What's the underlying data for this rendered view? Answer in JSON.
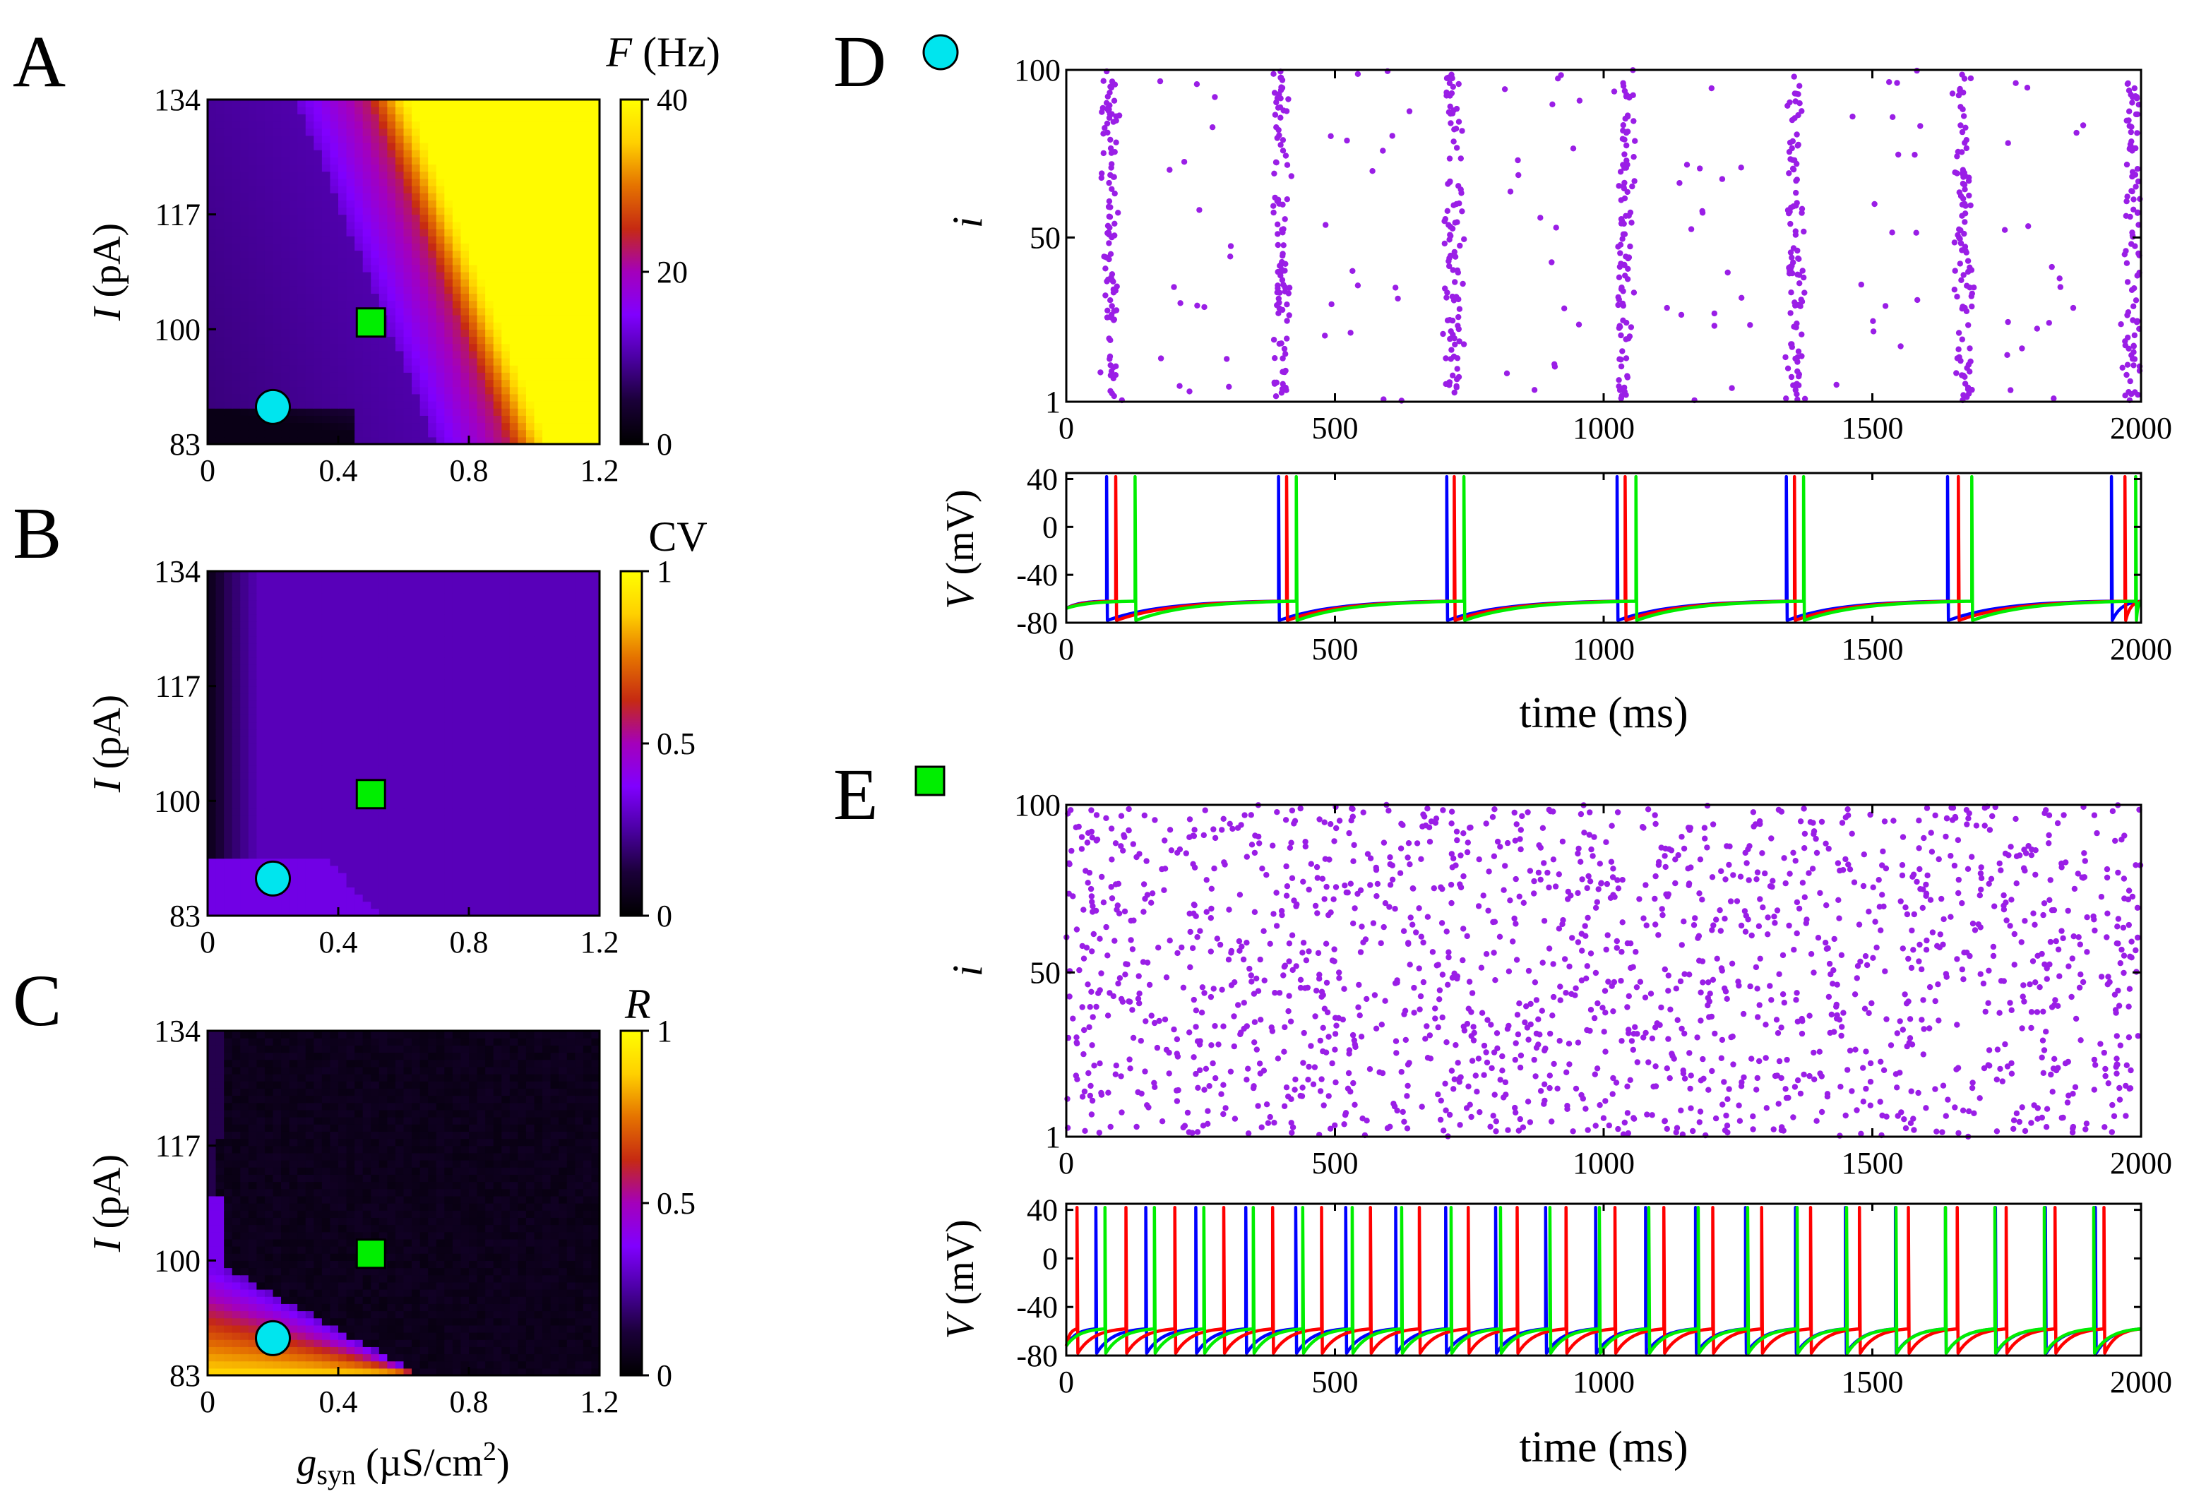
{
  "chart_data": [
    {
      "panel": "A",
      "type": "heatmap",
      "label": "A",
      "xlabel_main": "g",
      "xlabel_sub": "syn",
      "xlabel_unit": " (µS/cm",
      "xlabel_sup": "2",
      "xlabel_close": ")",
      "ylabel_var": "I",
      "ylabel_unit": " (pA)",
      "xticks": [
        "0",
        "0.4",
        "0.8",
        "1.2"
      ],
      "xlim": [
        0,
        1.2
      ],
      "yticks": [
        "83",
        "100",
        "117",
        "134"
      ],
      "ylim": [
        83,
        134
      ],
      "colorbar_title_var": "F",
      "colorbar_title_unit": " (Hz)",
      "colorbar_ticks": [
        "0",
        "20",
        "40"
      ],
      "colorbar_range": [
        0,
        40
      ],
      "colormap": [
        "#000000",
        "#1a0038",
        "#4b00a3",
        "#8000ff",
        "#a400bb",
        "#c62a12",
        "#e57300",
        "#ffd000",
        "#ffff00"
      ],
      "markers": [
        {
          "name": "cyan-circle",
          "g": 0.2,
          "I": 88.5,
          "color": "#00e5ee"
        },
        {
          "name": "green-square",
          "g": 0.5,
          "I": 101,
          "color": "#00ee00"
        }
      ]
    },
    {
      "panel": "B",
      "type": "heatmap",
      "label": "B",
      "ylabel_var": "I",
      "ylabel_unit": " (pA)",
      "xticks": [
        "0",
        "0.4",
        "0.8",
        "1.2"
      ],
      "xlim": [
        0,
        1.2
      ],
      "yticks": [
        "83",
        "100",
        "117",
        "134"
      ],
      "ylim": [
        83,
        134
      ],
      "colorbar_title": "CV",
      "colorbar_ticks": [
        "0",
        "0.5",
        "1"
      ],
      "colorbar_range": [
        0,
        1
      ]
    },
    {
      "panel": "C",
      "type": "heatmap",
      "label": "C",
      "ylabel_var": "I",
      "ylabel_unit": " (pA)",
      "xticks": [
        "0",
        "0.4",
        "0.8",
        "1.2"
      ],
      "xlim": [
        0,
        1.2
      ],
      "yticks": [
        "83",
        "100",
        "117",
        "134"
      ],
      "ylim": [
        83,
        134
      ],
      "colorbar_title_var": "R",
      "colorbar_ticks": [
        "0",
        "0.5",
        "1"
      ],
      "colorbar_range": [
        0,
        1
      ]
    },
    {
      "panel": "D",
      "type": "scatter",
      "label": "D",
      "marker": "cyan-circle",
      "raster": {
        "ylabel": "i",
        "xlim": [
          0,
          2000
        ],
        "ylim": [
          1,
          100
        ],
        "xticks": [
          "0",
          "500",
          "1000",
          "1500",
          "2000"
        ],
        "yticks": [
          "1",
          "50",
          "100"
        ],
        "burst_times_ms": [
          80,
          400,
          720,
          1040,
          1355,
          1670,
          1985
        ],
        "burst_spread_ms": 28,
        "dot_color": "#9a1ee6"
      },
      "voltage": {
        "type": "line",
        "ylabel_var": "V",
        "ylabel_unit": " (mV)",
        "xlim": [
          0,
          2000
        ],
        "ylim": [
          -80,
          45
        ],
        "xticks": [
          "0",
          "500",
          "1000",
          "1500",
          "2000"
        ],
        "yticks": [
          "-80",
          "-40",
          "0",
          "40"
        ],
        "xlabel": "time (ms)",
        "series": [
          {
            "name": "blue",
            "color": "#0000ff",
            "spikes_ms": [
              75,
              395,
              708,
              1025,
              1340,
              1640,
              1945
            ]
          },
          {
            "name": "red",
            "color": "#ff0000",
            "spikes_ms": [
              92,
              410,
              722,
              1040,
              1355,
              1660,
              1970
            ]
          },
          {
            "name": "green",
            "color": "#00ee00",
            "spikes_ms": [
              128,
              428,
              740,
              1060,
              1372,
              1685,
              1990
            ]
          }
        ]
      }
    },
    {
      "panel": "E",
      "type": "scatter",
      "label": "E",
      "marker": "green-square",
      "raster": {
        "ylabel": "i",
        "xlim": [
          0,
          2000
        ],
        "ylim": [
          1,
          100
        ],
        "xticks": [
          "0",
          "500",
          "1000",
          "1500",
          "2000"
        ],
        "yticks": [
          "1",
          "50",
          "100"
        ],
        "n_spikes": 1700,
        "dot_color": "#9a1ee6"
      },
      "voltage": {
        "type": "line",
        "ylabel_var": "V",
        "ylabel_unit": " (mV)",
        "xlim": [
          0,
          2000
        ],
        "ylim": [
          -80,
          45
        ],
        "xticks": [
          "0",
          "500",
          "1000",
          "1500",
          "2000"
        ],
        "yticks": [
          "-80",
          "-40",
          "0",
          "40"
        ],
        "xlabel": "time (ms)",
        "series": [
          {
            "name": "blue",
            "color": "#0000ff",
            "period_ms": 93,
            "phase_ms": 55
          },
          {
            "name": "red",
            "color": "#ff0000",
            "period_ms": 91,
            "phase_ms": 20
          },
          {
            "name": "green",
            "color": "#00ee00",
            "period_ms": 92,
            "phase_ms": 72
          }
        ]
      }
    }
  ]
}
